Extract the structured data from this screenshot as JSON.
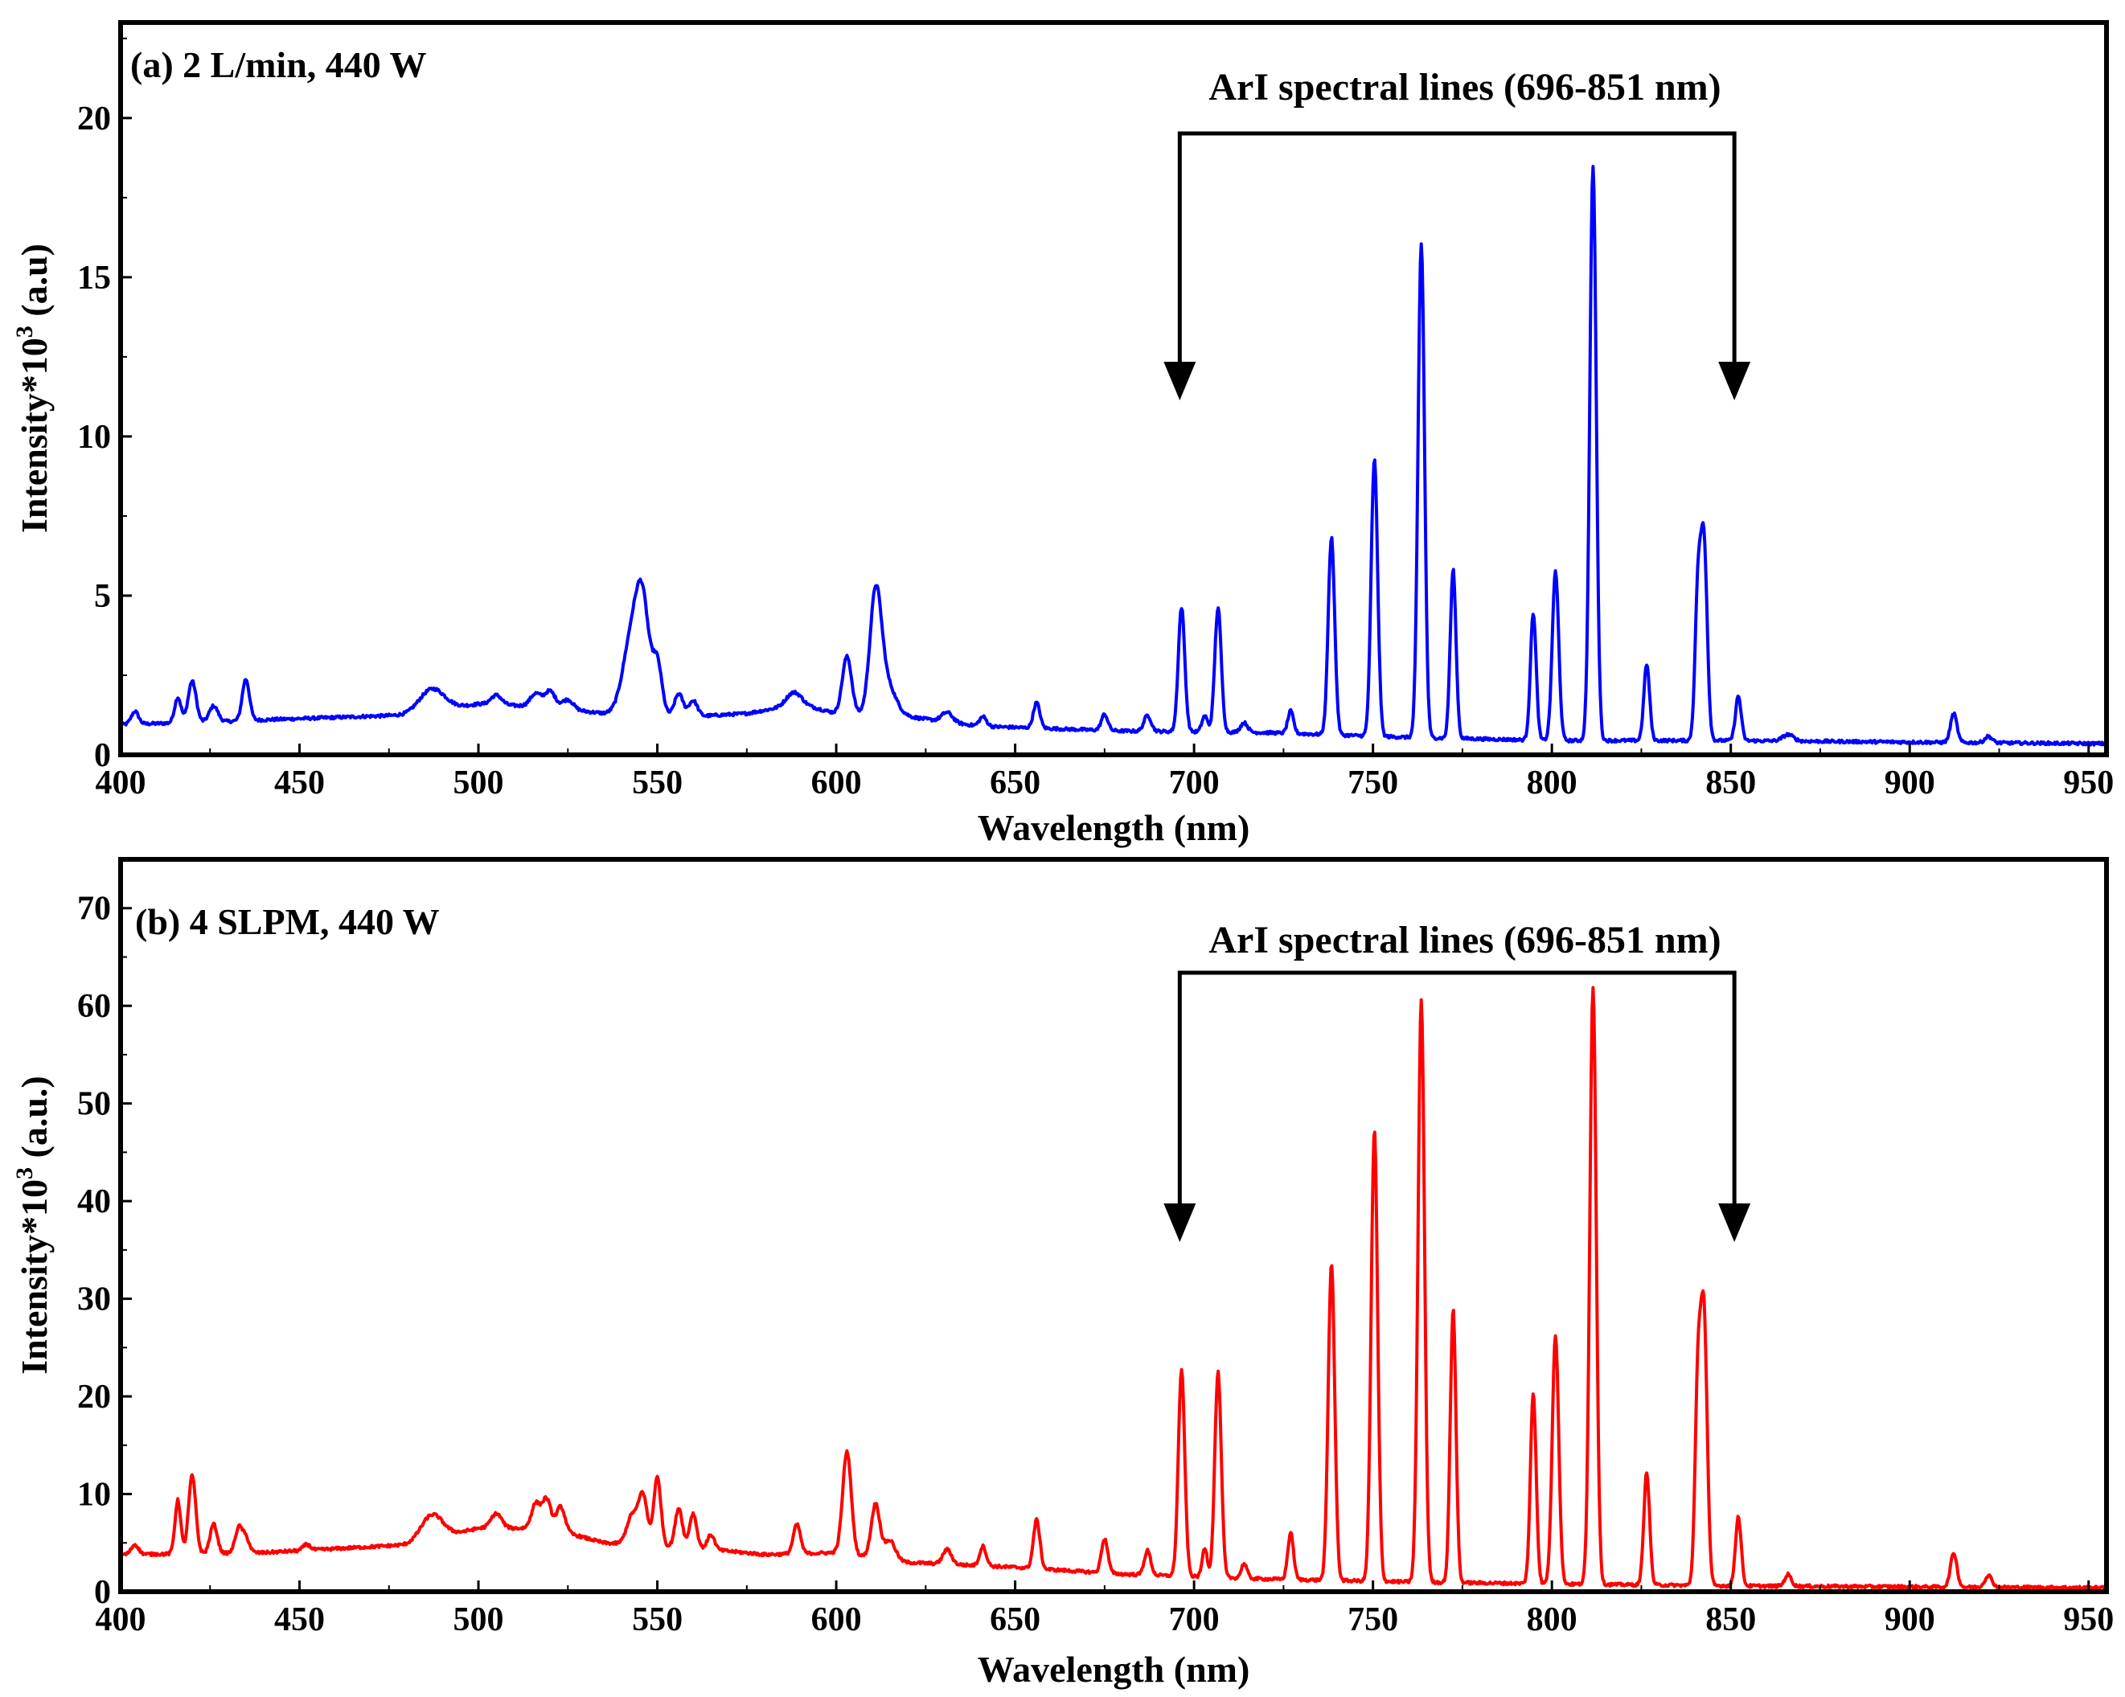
{
  "chart_data": [
    {
      "type": "line",
      "panel_label": "(a) 2 L/min, 440 W",
      "annotation": "ArI spectral lines (696-851 nm)",
      "xlabel": "Wavelength (nm)",
      "ylabel": "Intensity*10",
      "ylabel_sup": "3",
      "ylabel_unit": " (a.u)",
      "xlim": [
        400,
        955
      ],
      "ylim": [
        0,
        23
      ],
      "x_ticks": [
        400,
        450,
        500,
        550,
        600,
        650,
        700,
        750,
        800,
        850,
        900,
        950
      ],
      "y_ticks": [
        0,
        5,
        10,
        15,
        20
      ],
      "arrow_span": [
        696,
        851
      ],
      "color": "#0000ff",
      "baseline": [
        [
          400,
          0.95
        ],
        [
          430,
          1.05
        ],
        [
          440,
          1.1
        ],
        [
          480,
          1.25
        ],
        [
          500,
          1.6
        ],
        [
          520,
          1.5
        ],
        [
          535,
          1.3
        ],
        [
          560,
          1.2
        ],
        [
          575,
          1.3
        ],
        [
          590,
          1.6
        ],
        [
          600,
          1.3
        ],
        [
          620,
          1.2
        ],
        [
          640,
          0.9
        ],
        [
          680,
          0.75
        ],
        [
          720,
          0.7
        ],
        [
          760,
          0.55
        ],
        [
          800,
          0.45
        ],
        [
          850,
          0.45
        ],
        [
          900,
          0.4
        ],
        [
          955,
          0.35
        ]
      ],
      "peaks": [
        [
          404,
          0.4,
          1.0
        ],
        [
          416,
          0.8,
          0.9
        ],
        [
          420,
          1.3,
          1.1
        ],
        [
          426,
          0.5,
          1.2
        ],
        [
          435,
          1.3,
          1.0
        ],
        [
          487,
          0.7,
          3.5
        ],
        [
          505,
          0.3,
          1.5
        ],
        [
          516,
          0.4,
          1.5
        ],
        [
          520,
          0.5,
          1.5
        ],
        [
          525,
          0.3,
          1.5
        ],
        [
          543,
          2.5,
          2.5
        ],
        [
          546,
          2.8,
          1.8
        ],
        [
          550,
          1.6,
          1.3
        ],
        [
          556,
          0.7,
          1.2
        ],
        [
          560,
          0.5,
          1.2
        ],
        [
          588,
          0.4,
          2.0
        ],
        [
          603,
          1.8,
          1.3
        ],
        [
          611,
          3.6,
          1.6
        ],
        [
          614,
          1.0,
          2.5
        ],
        [
          631,
          0.3,
          1.5
        ],
        [
          641,
          0.3,
          1.0
        ],
        [
          656,
          0.8,
          0.9
        ],
        [
          675,
          0.5,
          0.9
        ],
        [
          687,
          0.5,
          1.0
        ],
        [
          696.5,
          3.9,
          0.9
        ],
        [
          703,
          0.5,
          0.8
        ],
        [
          706.7,
          3.9,
          0.9
        ],
        [
          714,
          0.3,
          1.0
        ],
        [
          727,
          0.7,
          0.8
        ],
        [
          738.4,
          6.2,
          0.9
        ],
        [
          750.4,
          8.7,
          0.9
        ],
        [
          763.5,
          15.5,
          0.9
        ],
        [
          772.4,
          5.3,
          0.8
        ],
        [
          794.8,
          4.0,
          0.8
        ],
        [
          801,
          5.3,
          0.9
        ],
        [
          811.5,
          18.0,
          0.9
        ],
        [
          826.5,
          2.4,
          0.8
        ],
        [
          840.8,
          4.5,
          0.8
        ],
        [
          842.5,
          6.2,
          0.9
        ],
        [
          852.1,
          1.4,
          0.8
        ],
        [
          866,
          0.2,
          1.5
        ],
        [
          912.3,
          0.9,
          0.9
        ],
        [
          922,
          0.2,
          1.0
        ]
      ]
    },
    {
      "type": "line",
      "panel_label": "(b) 4 SLPM, 440 W",
      "annotation": "ArI spectral lines (696-851 nm)",
      "xlabel": "Wavelength (nm)",
      "ylabel": "Intensity*10",
      "ylabel_sup": "3",
      "ylabel_unit": " (a.u.)",
      "xlim": [
        400,
        955
      ],
      "ylim": [
        0,
        75
      ],
      "x_ticks": [
        400,
        450,
        500,
        550,
        600,
        650,
        700,
        750,
        800,
        850,
        900,
        950
      ],
      "y_ticks": [
        0,
        10,
        20,
        30,
        40,
        50,
        60,
        70
      ],
      "arrow_span": [
        696,
        851
      ],
      "color": "#ff0000",
      "baseline": [
        [
          400,
          3.8
        ],
        [
          440,
          4.0
        ],
        [
          480,
          4.8
        ],
        [
          500,
          6.5
        ],
        [
          520,
          6.5
        ],
        [
          535,
          5.0
        ],
        [
          560,
          4.5
        ],
        [
          580,
          3.8
        ],
        [
          600,
          4.0
        ],
        [
          620,
          3.0
        ],
        [
          650,
          2.5
        ],
        [
          680,
          1.8
        ],
        [
          720,
          1.3
        ],
        [
          760,
          1.0
        ],
        [
          800,
          0.8
        ],
        [
          850,
          0.6
        ],
        [
          900,
          0.5
        ],
        [
          955,
          0.4
        ]
      ],
      "peaks": [
        [
          404,
          1.0,
          1.0
        ],
        [
          416,
          5.5,
          0.8
        ],
        [
          420,
          8.0,
          1.0
        ],
        [
          426,
          3.0,
          1.0
        ],
        [
          433,
          2.5,
          1.0
        ],
        [
          435,
          1.5,
          1.0
        ],
        [
          452,
          0.6,
          1.0
        ],
        [
          487,
          2.5,
          3.0
        ],
        [
          505,
          1.5,
          1.5
        ],
        [
          516,
          2.5,
          1.2
        ],
        [
          519,
          3.0,
          1.2
        ],
        [
          523,
          2.5,
          1.2
        ],
        [
          543,
          3.0,
          1.5
        ],
        [
          546,
          5.0,
          1.2
        ],
        [
          550,
          7.0,
          1.0
        ],
        [
          556,
          4.0,
          1.0
        ],
        [
          560,
          3.5,
          1.0
        ],
        [
          565,
          1.5,
          1.0
        ],
        [
          589,
          3.0,
          1.0
        ],
        [
          603,
          10.5,
          1.2
        ],
        [
          611,
          5.5,
          1.2
        ],
        [
          615,
          2.0,
          1.5
        ],
        [
          631,
          1.5,
          1.2
        ],
        [
          641,
          2.0,
          0.9
        ],
        [
          656,
          5.0,
          0.9
        ],
        [
          675,
          3.5,
          0.9
        ],
        [
          687,
          2.5,
          0.9
        ],
        [
          696.5,
          21.0,
          0.9
        ],
        [
          703,
          3.0,
          0.7
        ],
        [
          706.7,
          21.0,
          0.9
        ],
        [
          714,
          1.5,
          0.8
        ],
        [
          727,
          4.8,
          0.8
        ],
        [
          738.4,
          32.5,
          0.9
        ],
        [
          750.4,
          46.2,
          0.9
        ],
        [
          763.5,
          59.5,
          0.9
        ],
        [
          772.4,
          28.0,
          0.8
        ],
        [
          794.8,
          19.5,
          0.8
        ],
        [
          801,
          25.5,
          0.9
        ],
        [
          811.5,
          61.2,
          0.9
        ],
        [
          826.5,
          11.6,
          0.8
        ],
        [
          840.8,
          20.0,
          0.8
        ],
        [
          842.5,
          27.5,
          0.9
        ],
        [
          852.1,
          7.1,
          0.8
        ],
        [
          866,
          1.2,
          0.9
        ],
        [
          912.3,
          3.5,
          0.9
        ],
        [
          922,
          1.2,
          1.0
        ]
      ]
    }
  ]
}
